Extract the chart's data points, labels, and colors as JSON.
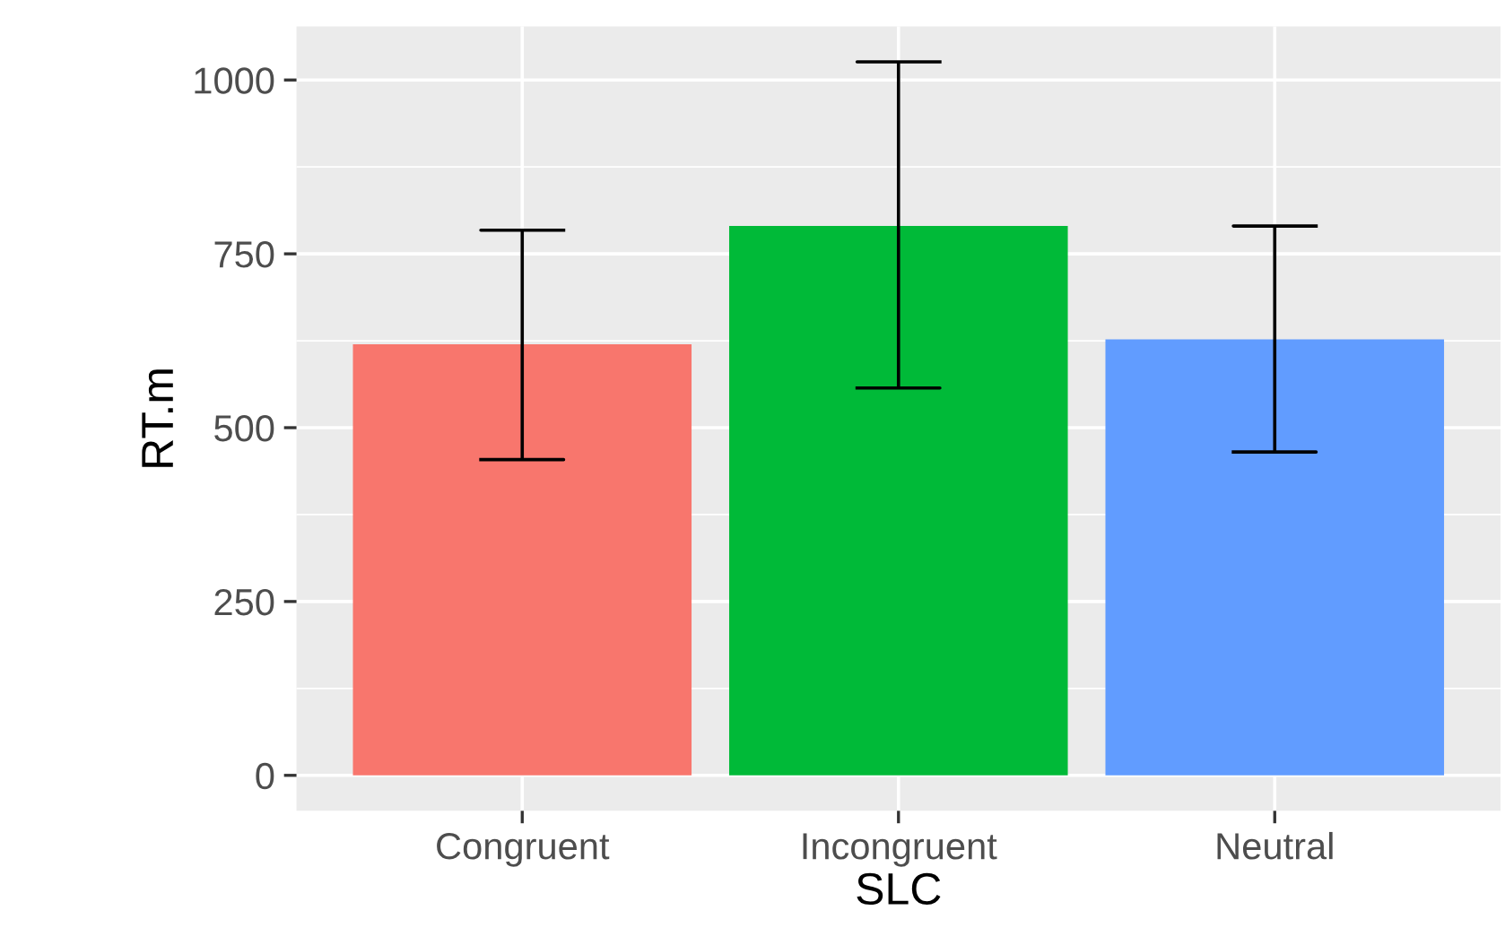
{
  "chart_data": {
    "type": "bar",
    "xlabel": "SLC",
    "ylabel": "RT.m",
    "categories": [
      "Congruent",
      "Incongruent",
      "Neutral"
    ],
    "values": [
      620,
      790,
      627
    ],
    "colors": [
      "#f8766d",
      "#00ba38",
      "#619cff"
    ],
    "errors": [
      [
        454,
        784
      ],
      [
        557,
        1026
      ],
      [
        465,
        790
      ]
    ],
    "ylim": [
      -51,
      1077
    ],
    "yticks": [
      0,
      250,
      500,
      750,
      1000
    ],
    "grid": true
  }
}
